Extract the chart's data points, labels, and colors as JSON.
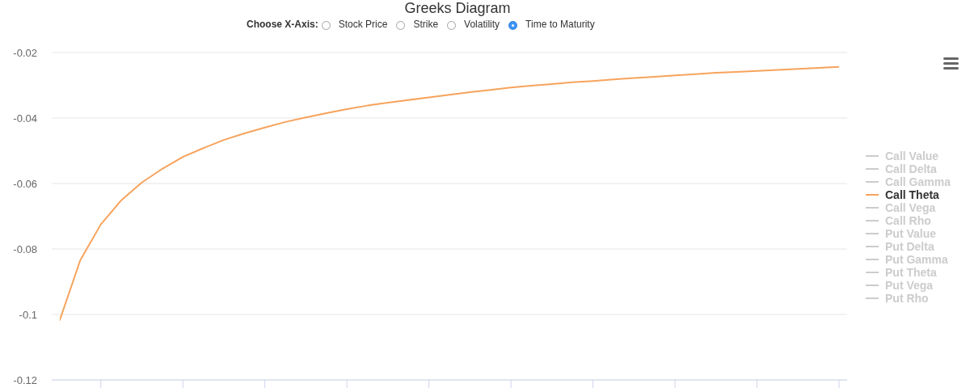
{
  "chart_data": {
    "type": "line",
    "title": "Greeks Diagram",
    "annotations": [
      "Choose X-Axis:",
      "Stock Price",
      "Strike",
      "Volatility",
      "Time to Maturity"
    ],
    "categories": [
      null,
      null,
      null,
      null,
      null,
      null,
      null,
      null,
      null,
      null,
      null,
      null,
      null,
      null,
      null,
      null,
      null,
      null,
      null,
      null,
      null,
      null,
      null,
      null,
      null,
      null,
      null,
      null,
      null,
      null,
      null,
      null,
      null,
      null,
      null,
      null,
      null,
      null,
      null
    ],
    "series": [
      {
        "name": "Call Value",
        "color": "#cccccc",
        "values": [
          null,
          null,
          null,
          null,
          null,
          null,
          null,
          null,
          null,
          null,
          null,
          null,
          null,
          null,
          null,
          null,
          null,
          null,
          null,
          null,
          null,
          null,
          null,
          null,
          null,
          null,
          null,
          null,
          null,
          null,
          null,
          null,
          null,
          null,
          null,
          null,
          null,
          null,
          null
        ]
      },
      {
        "name": "Call Delta",
        "color": "#cccccc",
        "values": [
          null,
          null,
          null,
          null,
          null,
          null,
          null,
          null,
          null,
          null,
          null,
          null,
          null,
          null,
          null,
          null,
          null,
          null,
          null,
          null,
          null,
          null,
          null,
          null,
          null,
          null,
          null,
          null,
          null,
          null,
          null,
          null,
          null,
          null,
          null,
          null,
          null,
          null,
          null
        ]
      },
      {
        "name": "Call Gamma",
        "color": "#cccccc",
        "values": [
          null,
          null,
          null,
          null,
          null,
          null,
          null,
          null,
          null,
          null,
          null,
          null,
          null,
          null,
          null,
          null,
          null,
          null,
          null,
          null,
          null,
          null,
          null,
          null,
          null,
          null,
          null,
          null,
          null,
          null,
          null,
          null,
          null,
          null,
          null,
          null,
          null,
          null,
          null
        ]
      },
      {
        "name": "Call Theta",
        "color": "#f7a35c",
        "values": [
          -0.1017,
          -0.0834,
          -0.0725,
          -0.0651,
          -0.0597,
          -0.0555,
          -0.0519,
          -0.0492,
          -0.0467,
          -0.0447,
          -0.0429,
          -0.0412,
          -0.0398,
          -0.0385,
          -0.0373,
          -0.0362,
          -0.0353,
          -0.0345,
          -0.0337,
          -0.0329,
          -0.0321,
          -0.0314,
          -0.0307,
          -0.0301,
          -0.0296,
          -0.0291,
          -0.0287,
          -0.0282,
          -0.0278,
          -0.0274,
          -0.027,
          -0.0266,
          -0.0262,
          -0.0259,
          -0.0256,
          -0.0253,
          -0.025,
          -0.0247,
          -0.0244
        ]
      },
      {
        "name": "Call Vega",
        "color": "#cccccc",
        "values": [
          null,
          null,
          null,
          null,
          null,
          null,
          null,
          null,
          null,
          null,
          null,
          null,
          null,
          null,
          null,
          null,
          null,
          null,
          null,
          null,
          null,
          null,
          null,
          null,
          null,
          null,
          null,
          null,
          null,
          null,
          null,
          null,
          null,
          null,
          null,
          null,
          null,
          null,
          null
        ]
      },
      {
        "name": "Call Rho",
        "color": "#cccccc",
        "values": [
          null,
          null,
          null,
          null,
          null,
          null,
          null,
          null,
          null,
          null,
          null,
          null,
          null,
          null,
          null,
          null,
          null,
          null,
          null,
          null,
          null,
          null,
          null,
          null,
          null,
          null,
          null,
          null,
          null,
          null,
          null,
          null,
          null,
          null,
          null,
          null,
          null,
          null,
          null
        ]
      },
      {
        "name": "Put Value",
        "color": "#cccccc",
        "values": [
          null,
          null,
          null,
          null,
          null,
          null,
          null,
          null,
          null,
          null,
          null,
          null,
          null,
          null,
          null,
          null,
          null,
          null,
          null,
          null,
          null,
          null,
          null,
          null,
          null,
          null,
          null,
          null,
          null,
          null,
          null,
          null,
          null,
          null,
          null,
          null,
          null,
          null,
          null
        ]
      },
      {
        "name": "Put Delta",
        "color": "#cccccc",
        "values": [
          null,
          null,
          null,
          null,
          null,
          null,
          null,
          null,
          null,
          null,
          null,
          null,
          null,
          null,
          null,
          null,
          null,
          null,
          null,
          null,
          null,
          null,
          null,
          null,
          null,
          null,
          null,
          null,
          null,
          null,
          null,
          null,
          null,
          null,
          null,
          null,
          null,
          null,
          null
        ]
      },
      {
        "name": "Put Gamma",
        "color": "#cccccc",
        "values": [
          null,
          null,
          null,
          null,
          null,
          null,
          null,
          null,
          null,
          null,
          null,
          null,
          null,
          null,
          null,
          null,
          null,
          null,
          null,
          null,
          null,
          null,
          null,
          null,
          null,
          null,
          null,
          null,
          null,
          null,
          null,
          null,
          null,
          null,
          null,
          null,
          null,
          null,
          null
        ]
      },
      {
        "name": "Put Theta",
        "color": "#cccccc",
        "values": [
          null,
          null,
          null,
          null,
          null,
          null,
          null,
          null,
          null,
          null,
          null,
          null,
          null,
          null,
          null,
          null,
          null,
          null,
          null,
          null,
          null,
          null,
          null,
          null,
          null,
          null,
          null,
          null,
          null,
          null,
          null,
          null,
          null,
          null,
          null,
          null,
          null,
          null,
          null
        ]
      },
      {
        "name": "Put Vega",
        "color": "#cccccc",
        "values": [
          null,
          null,
          null,
          null,
          null,
          null,
          null,
          null,
          null,
          null,
          null,
          null,
          null,
          null,
          null,
          null,
          null,
          null,
          null,
          null,
          null,
          null,
          null,
          null,
          null,
          null,
          null,
          null,
          null,
          null,
          null,
          null,
          null,
          null,
          null,
          null,
          null,
          null,
          null
        ]
      },
      {
        "name": "Put Rho",
        "color": "#cccccc",
        "values": [
          null,
          null,
          null,
          null,
          null,
          null,
          null,
          null,
          null,
          null,
          null,
          null,
          null,
          null,
          null,
          null,
          null,
          null,
          null,
          null,
          null,
          null,
          null,
          null,
          null,
          null,
          null,
          null,
          null,
          null,
          null,
          null,
          null,
          null,
          null,
          null,
          null,
          null,
          null
        ]
      }
    ],
    "ylim": [
      -0.12,
      -0.02
    ],
    "yticks": [
      -0.12,
      -0.1,
      -0.08,
      -0.06,
      -0.04,
      -0.02
    ],
    "grid": "y",
    "legend": "right",
    "tick_labels": "y"
  }
}
